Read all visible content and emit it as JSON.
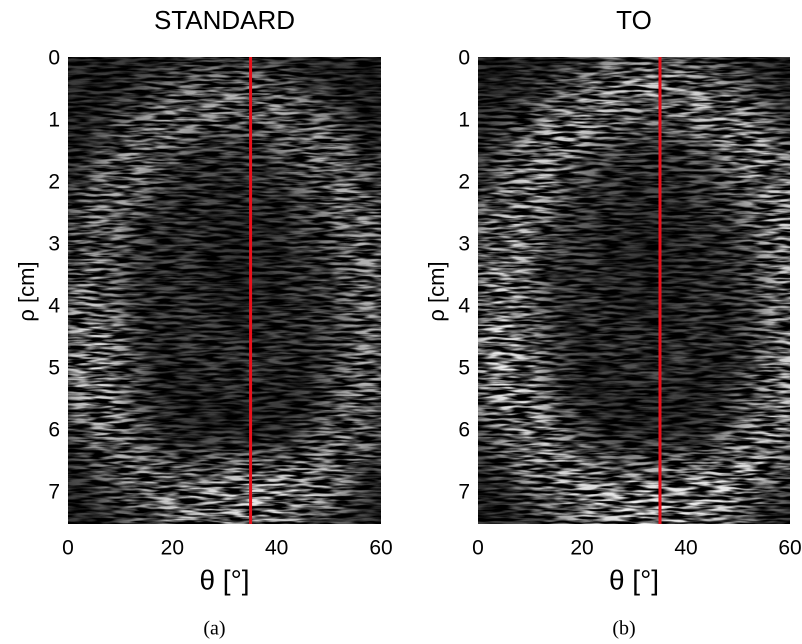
{
  "chart_data": [
    {
      "type": "image",
      "title": "STANDARD",
      "xlabel": "θ [°]",
      "ylabel": "ρ [cm]",
      "caption": "(a)",
      "xlim": [
        0,
        60
      ],
      "xticks": [
        0,
        20,
        40,
        60
      ],
      "ylim": [
        0,
        7.5
      ],
      "yticks": [
        0,
        1,
        2,
        3,
        4,
        5,
        6,
        7
      ],
      "y_inverted": true,
      "line_x": 35,
      "line_color": "#e8101a"
    },
    {
      "type": "image",
      "title": "TO",
      "xlabel": "θ [°]",
      "ylabel": "ρ [cm]",
      "caption": "(b)",
      "xlim": [
        0,
        60
      ],
      "xticks": [
        0,
        20,
        40,
        60
      ],
      "ylim": [
        0,
        7.5
      ],
      "yticks": [
        0,
        1,
        2,
        3,
        4,
        5,
        6,
        7
      ],
      "y_inverted": true,
      "line_x": 35,
      "line_color": "#e8101a"
    }
  ]
}
